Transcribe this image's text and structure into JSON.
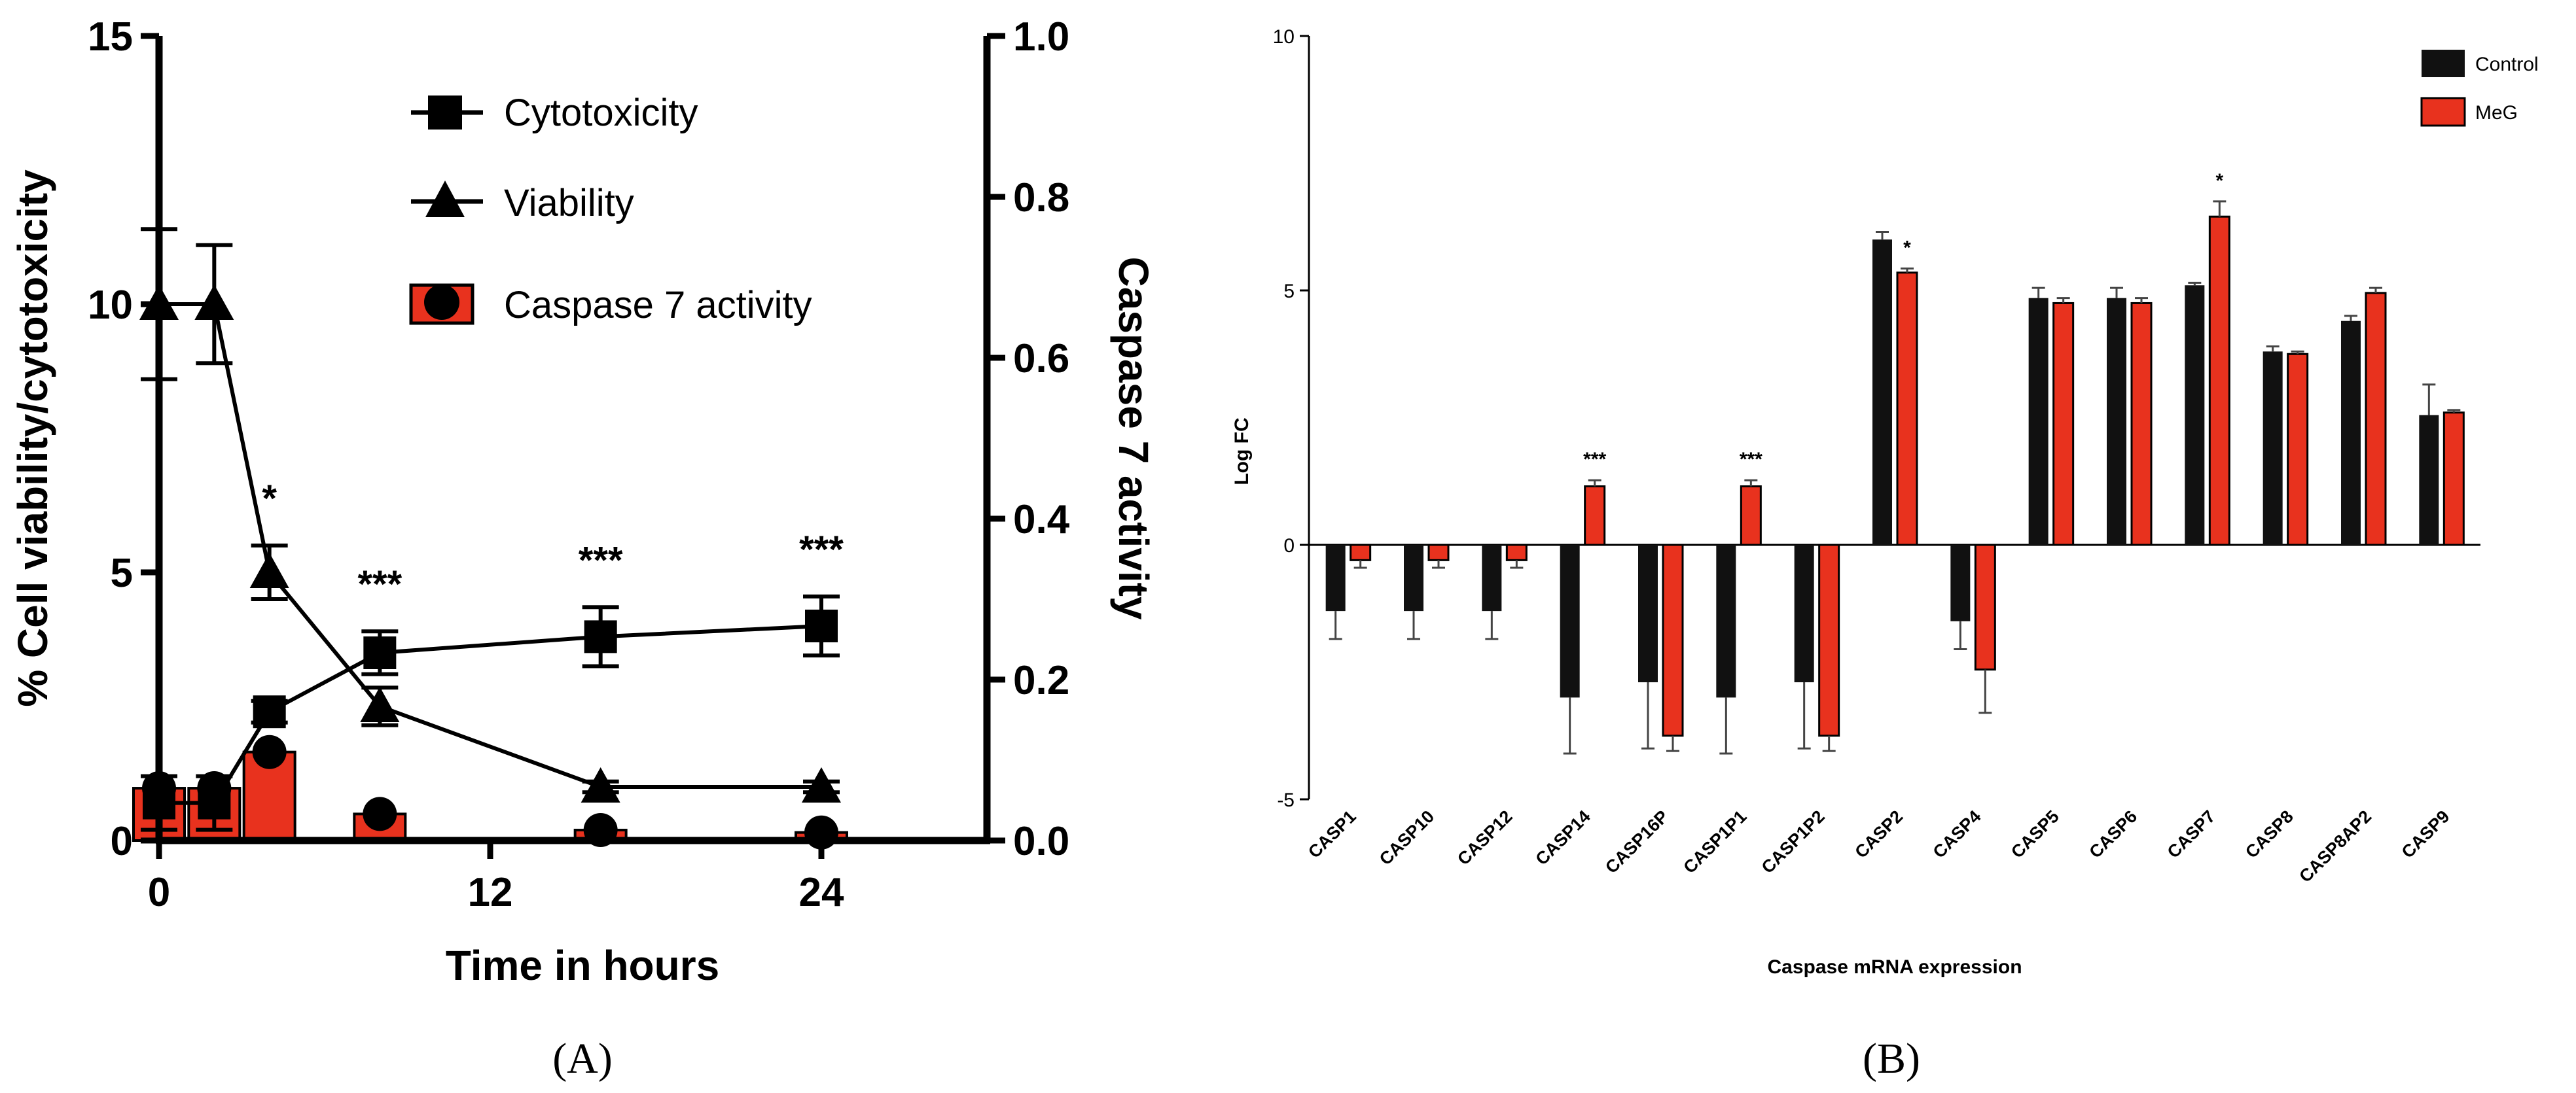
{
  "panels": [
    {
      "panel_label": "(A)",
      "legend": [
        "Cytotoxicity",
        "Viability",
        "Caspase 7 activity"
      ],
      "significance": [
        "*",
        "***",
        "***",
        "***"
      ]
    },
    {
      "panel_label": "(B)",
      "legend": [
        "Control",
        "MeG"
      ],
      "significance": [
        "***",
        "***",
        "*",
        "*"
      ]
    }
  ],
  "colors": {
    "black": "#111111",
    "red": "#e8321e",
    "axis": "#000000"
  },
  "chart_data": [
    {
      "type": "line",
      "title": "",
      "xlabel": "Time in hours",
      "ylabel": "% Cell viability/cytotoxicity",
      "y2label": "Caspase 7 activity",
      "xlim": [
        0,
        30
      ],
      "ylim": [
        0,
        15
      ],
      "y2lim": [
        0,
        1.0
      ],
      "x_ticks": [
        0,
        12,
        24
      ],
      "y_ticks": [
        0,
        5,
        10,
        15
      ],
      "y2_ticks": [
        "0.0",
        "0.2",
        "0.4",
        "0.6",
        "0.8",
        "1.0"
      ],
      "series": [
        {
          "name": "Cytotoxicity",
          "marker": "square",
          "axis": "left",
          "x": [
            0,
            2,
            4,
            8,
            16,
            24
          ],
          "values": [
            0.7,
            0.7,
            2.4,
            3.5,
            3.8,
            4.0
          ],
          "errors": [
            0.5,
            0.5,
            0.2,
            0.4,
            0.55,
            0.55
          ]
        },
        {
          "name": "Viability",
          "marker": "triangle",
          "axis": "left",
          "x": [
            0,
            2,
            4,
            8,
            16,
            24
          ],
          "values": [
            10.0,
            10.0,
            5.0,
            2.5,
            1.0,
            1.0
          ],
          "errors": [
            1.4,
            1.1,
            0.5,
            0.35,
            0.1,
            0.1
          ]
        },
        {
          "name": "Caspase 7 activity",
          "marker": "circle",
          "type": "bar",
          "axis": "right",
          "x": [
            0,
            2,
            4,
            8,
            16,
            24
          ],
          "values": [
            0.065,
            0.065,
            0.11,
            0.033,
            0.013,
            0.01
          ],
          "errors": [
            0.008,
            0.008,
            0.005,
            0.007,
            0.006,
            0.005
          ]
        }
      ],
      "annotations": [
        {
          "x": 4,
          "text": "*"
        },
        {
          "x": 8,
          "text": "***"
        },
        {
          "x": 16,
          "text": "***"
        },
        {
          "x": 24,
          "text": "***"
        }
      ],
      "legend_position": "top-right"
    },
    {
      "type": "bar",
      "title": "",
      "xlabel": "Caspase mRNA expression",
      "ylabel": "Log FC",
      "ylim": [
        -5,
        10
      ],
      "y_ticks": [
        -5,
        0,
        5,
        10
      ],
      "categories": [
        "CASP1",
        "CASP10",
        "CASP12",
        "CASP14",
        "CASP16P",
        "CASP1P1",
        "CASP1P2",
        "CASP2",
        "CASP4",
        "CASP5",
        "CASP6",
        "CASP7",
        "CASP8",
        "CASP8AP2",
        "CASP9"
      ],
      "series": [
        {
          "name": "Control",
          "values": [
            -1.3,
            -1.3,
            -1.3,
            -3.0,
            -2.7,
            -3.0,
            -2.7,
            6.0,
            -1.5,
            4.85,
            4.85,
            5.1,
            3.8,
            4.4,
            2.55
          ],
          "errors": [
            0.55,
            0.55,
            0.55,
            1.1,
            1.3,
            1.1,
            1.3,
            0.15,
            0.55,
            0.2,
            0.2,
            0.05,
            0.1,
            0.1,
            0.6
          ]
        },
        {
          "name": "MeG",
          "values": [
            -0.3,
            -0.3,
            -0.3,
            1.15,
            -3.75,
            1.15,
            -3.75,
            5.35,
            -2.45,
            4.75,
            4.75,
            6.45,
            3.75,
            4.95,
            2.6
          ],
          "errors": [
            0.15,
            0.15,
            0.15,
            0.12,
            0.3,
            0.12,
            0.3,
            0.08,
            0.85,
            0.1,
            0.1,
            0.3,
            0.05,
            0.1,
            0.05
          ]
        }
      ],
      "annotations": [
        {
          "category": "CASP14",
          "text": "***"
        },
        {
          "category": "CASP1P1",
          "text": "***"
        },
        {
          "category": "CASP2",
          "text": "*"
        },
        {
          "category": "CASP7",
          "text": "*"
        }
      ],
      "legend_position": "top-right"
    }
  ]
}
